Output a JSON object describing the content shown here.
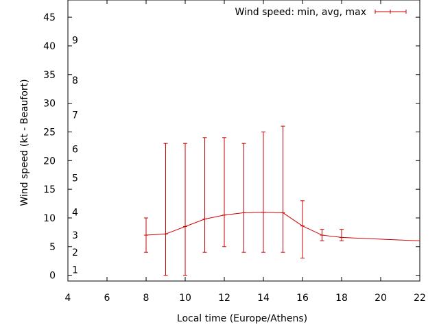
{
  "chart_data": {
    "type": "line",
    "xlabel": "Local time (Europe/Athens)",
    "ylabel": "Wind speed (kt - Beaufort)",
    "xlim": [
      4,
      22
    ],
    "ylim": [
      -1,
      48
    ],
    "x_ticks": [
      4,
      6,
      8,
      10,
      12,
      14,
      16,
      18,
      20,
      22
    ],
    "y_ticks": [
      0,
      5,
      10,
      15,
      20,
      25,
      30,
      35,
      40,
      45
    ],
    "beaufort_labels": [
      {
        "label": "1",
        "y": 1
      },
      {
        "label": "2",
        "y": 4
      },
      {
        "label": "3",
        "y": 7
      },
      {
        "label": "4",
        "y": 11
      },
      {
        "label": "5",
        "y": 17
      },
      {
        "label": "6",
        "y": 22
      },
      {
        "label": "7",
        "y": 28
      },
      {
        "label": "8",
        "y": 34
      },
      {
        "label": "9",
        "y": 41
      }
    ],
    "legend_position": "top-right",
    "color": "#cc0000",
    "series": [
      {
        "name": "Wind speed: min, avg, max",
        "points": [
          {
            "x": 8,
            "y": 7,
            "min": 4,
            "max": 10
          },
          {
            "x": 9,
            "y": 7.2,
            "min": 0,
            "max": 23
          },
          {
            "x": 10,
            "y": 8.5,
            "min": 0,
            "max": 23
          },
          {
            "x": 11,
            "y": 9.8,
            "min": 4,
            "max": 24
          },
          {
            "x": 12,
            "y": 10.5,
            "min": 5,
            "max": 24
          },
          {
            "x": 13,
            "y": 10.9,
            "min": 4,
            "max": 23
          },
          {
            "x": 14,
            "y": 11,
            "min": 4,
            "max": 25
          },
          {
            "x": 15,
            "y": 10.9,
            "min": 4,
            "max": 26
          },
          {
            "x": 16,
            "y": 8.6,
            "min": 3,
            "max": 13
          },
          {
            "x": 17,
            "y": 7,
            "min": 6,
            "max": 8
          },
          {
            "x": 18,
            "y": 6.6,
            "min": 6,
            "max": 8
          },
          {
            "x": 22,
            "y": 6,
            "min": null,
            "max": null
          }
        ]
      }
    ]
  }
}
